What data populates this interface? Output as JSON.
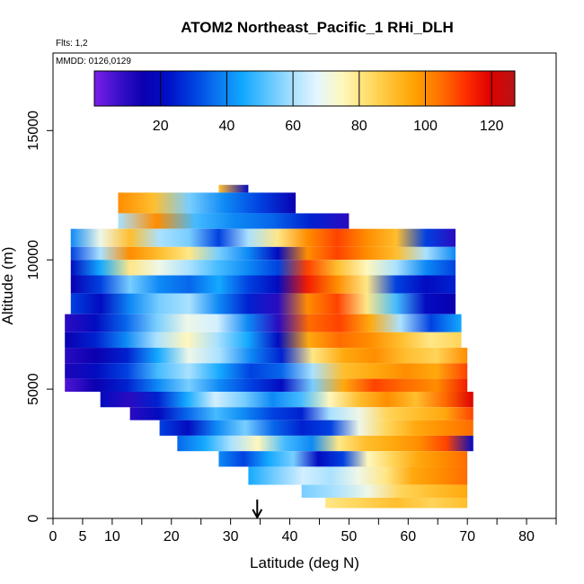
{
  "chart_data": {
    "type": "heatmap",
    "title": "ATOM2 Northeast_Pacific_1 RHi_DLH",
    "flights_note": "Flts: 1,2",
    "dates_note": "MMDD: 0126,0129",
    "xlabel": "Latitude (deg N)",
    "ylabel": "Altitude (m)",
    "xlim": [
      0,
      85
    ],
    "ylim": [
      0,
      18000
    ],
    "x_ticks": [
      0,
      5,
      10,
      20,
      30,
      40,
      50,
      60,
      70,
      80
    ],
    "x_minor_ticks": [
      15,
      25,
      35,
      45,
      55,
      65,
      75,
      85
    ],
    "y_ticks": [
      0,
      5000,
      10000,
      15000
    ],
    "colorbar": {
      "min": 0,
      "max": 127,
      "ticks": [
        20,
        40,
        60,
        80,
        100,
        120
      ],
      "separators": [
        20,
        40,
        60,
        80,
        100,
        120
      ],
      "colors": [
        "#7c1fe8",
        "#3a10c8",
        "#0a00b0",
        "#0010c8",
        "#0040e0",
        "#0a78f0",
        "#12a8ff",
        "#5cc4ff",
        "#a8e0ff",
        "#e4f6ff",
        "#fff8c0",
        "#ffe070",
        "#ffc030",
        "#ffa000",
        "#ff7000",
        "#ff3000",
        "#e00000",
        "#b81414"
      ]
    },
    "arrow_marker_latitude": 34.5,
    "altitude_bands": [
      {
        "alt": [
          12600,
          12900
        ],
        "lat": [
          28,
          33
        ],
        "values": [
          90,
          20
        ]
      },
      {
        "alt": [
          11800,
          12600
        ],
        "lat": [
          11,
          41
        ],
        "values": [
          100,
          90,
          55,
          40,
          30,
          15
        ]
      },
      {
        "alt": [
          11200,
          11800
        ],
        "lat": [
          11,
          50
        ],
        "values": [
          60,
          100,
          50,
          40,
          35,
          25,
          10
        ]
      },
      {
        "alt": [
          10500,
          11200
        ],
        "lat": [
          3,
          68
        ],
        "values": [
          40,
          70,
          90,
          60,
          55,
          30,
          60,
          80,
          100,
          110,
          100,
          90,
          30,
          10
        ]
      },
      {
        "alt": [
          10000,
          10500
        ],
        "lat": [
          3,
          68
        ],
        "values": [
          30,
          60,
          100,
          90,
          80,
          55,
          40,
          20,
          100,
          110,
          100,
          90,
          60,
          40
        ]
      },
      {
        "alt": [
          9400,
          10000
        ],
        "lat": [
          3,
          68
        ],
        "values": [
          20,
          45,
          80,
          70,
          60,
          50,
          40,
          30,
          110,
          90,
          75,
          60,
          40,
          30
        ]
      },
      {
        "alt": [
          8700,
          9400
        ],
        "lat": [
          3,
          68
        ],
        "values": [
          15,
          30,
          55,
          40,
          35,
          45,
          30,
          20,
          115,
          100,
          80,
          30,
          20,
          25
        ]
      },
      {
        "alt": [
          7900,
          8700
        ],
        "lat": [
          3,
          68
        ],
        "values": [
          30,
          20,
          40,
          55,
          60,
          40,
          25,
          10,
          100,
          110,
          80,
          50,
          20,
          15
        ]
      },
      {
        "alt": [
          7200,
          7900
        ],
        "lat": [
          2,
          69
        ],
        "values": [
          10,
          20,
          35,
          55,
          70,
          65,
          40,
          10,
          105,
          110,
          95,
          60,
          30,
          45
        ]
      },
      {
        "alt": [
          6600,
          7200
        ],
        "lat": [
          2,
          69
        ],
        "values": [
          15,
          25,
          40,
          60,
          75,
          60,
          45,
          20,
          95,
          105,
          100,
          90,
          80,
          85
        ]
      },
      {
        "alt": [
          6000,
          6600
        ],
        "lat": [
          2,
          70
        ],
        "values": [
          10,
          15,
          25,
          45,
          70,
          60,
          40,
          25,
          80,
          95,
          100,
          90,
          85,
          100
        ]
      },
      {
        "alt": [
          5400,
          6000
        ],
        "lat": [
          2,
          70
        ],
        "values": [
          12,
          20,
          30,
          50,
          60,
          45,
          30,
          35,
          60,
          90,
          95,
          100,
          95,
          110
        ]
      },
      {
        "alt": [
          4900,
          5400
        ],
        "lat": [
          2,
          70
        ],
        "values": [
          5,
          15,
          25,
          40,
          55,
          40,
          30,
          20,
          55,
          95,
          110,
          105,
          100,
          115
        ]
      },
      {
        "alt": [
          4300,
          4900
        ],
        "lat": [
          8,
          71
        ],
        "values": [
          20,
          10,
          25,
          45,
          65,
          55,
          40,
          50,
          75,
          90,
          100,
          90,
          105,
          120
        ]
      },
      {
        "alt": [
          3800,
          4300
        ],
        "lat": [
          13,
          71
        ],
        "values": [
          10,
          20,
          35,
          50,
          40,
          30,
          25,
          60,
          70,
          85,
          90,
          95,
          110
        ]
      },
      {
        "alt": [
          3200,
          3800
        ],
        "lat": [
          18,
          71
        ],
        "values": [
          30,
          20,
          40,
          55,
          35,
          25,
          30,
          70,
          85,
          95,
          100,
          105
        ]
      },
      {
        "alt": [
          2600,
          3200
        ],
        "lat": [
          21,
          71
        ],
        "values": [
          35,
          45,
          60,
          75,
          50,
          40,
          80,
          90,
          95,
          100,
          110,
          20
        ]
      },
      {
        "alt": [
          2000,
          2600
        ],
        "lat": [
          28,
          70
        ],
        "values": [
          40,
          30,
          45,
          55,
          20,
          30,
          75,
          85,
          95,
          100,
          105
        ]
      },
      {
        "alt": [
          1300,
          2000
        ],
        "lat": [
          33,
          70
        ],
        "values": [
          45,
          55,
          65,
          60,
          70,
          80,
          95,
          100,
          105
        ]
      },
      {
        "alt": [
          800,
          1300
        ],
        "lat": [
          42,
          70
        ],
        "values": [
          55,
          60,
          70,
          85,
          90,
          95
        ]
      },
      {
        "alt": [
          400,
          800
        ],
        "lat": [
          46,
          70
        ],
        "values": [
          80,
          85,
          90,
          85,
          90
        ]
      }
    ]
  }
}
